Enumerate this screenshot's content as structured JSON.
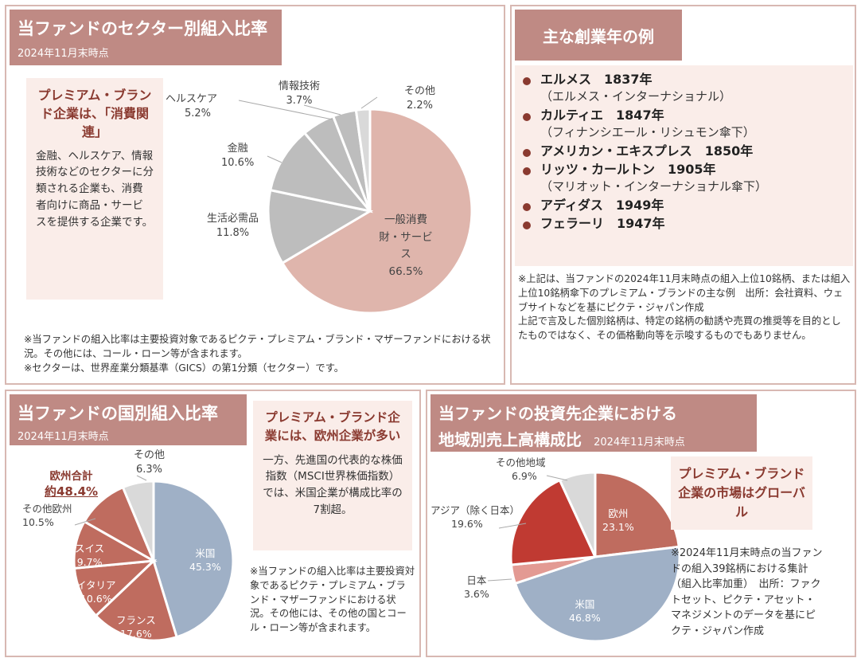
{
  "sector": {
    "title": "当ファンドのセクター別組入比率",
    "date": "2024年11月末時点",
    "callout_title": "プレミアム・ブランド企業は、「消費関連」",
    "callout_body": "金融、ヘルスケア、情報技術などのセクターに分類される企業も、消費者向けに商品・サービスを提供する企業です。",
    "notes": [
      "※当ファンドの組入比率は主要投資対象であるピクテ・プレミアム・ブランド・マザーファンドにおける状況。その他には、コール・ローン等が含まれます。",
      "※セクターは、世界産業分類基準（GICS）の第1分類（セクター）です。"
    ]
  },
  "founders": {
    "title": "主な創業年の例",
    "items": [
      {
        "main": "エルメス　1837年",
        "parent": "（エルメス・インターナショナル）"
      },
      {
        "main": "カルティエ　1847年",
        "parent": "（フィナンシエール・リシュモン傘下）"
      },
      {
        "main": "アメリカン・エキスプレス　1850年",
        "parent": ""
      },
      {
        "main": "リッツ・カールトン　1905年",
        "parent": "（マリオット・インターナショナル傘下）"
      },
      {
        "main": "アディダス　1949年",
        "parent": ""
      },
      {
        "main": "フェラーリ　1947年",
        "parent": ""
      }
    ],
    "notes": "※上記は、当ファンドの2024年11月末時点の組入上位10銘柄、または組入上位10銘柄傘下のプレミアム・ブランドの主な例　出所：会社資料、ウェブサイトなどを基にピクテ・ジャパン作成\n上記で言及した個別銘柄は、特定の銘柄の勧誘や売買の推奨等を目的としたものではなく、その価格動向等を示唆するものでもありません。"
  },
  "country": {
    "title": "当ファンドの国別組入比率",
    "date": "2024年11月末時点",
    "europe_total_label": "欧州合計",
    "europe_total_value": "約48.4%",
    "callout_title": "プレミアム・ブランド企業には、欧州企業が多い",
    "callout_body": "一方、先進国の代表的な株価指数（MSCI世界株価指数）では、米国企業が構成比率の7割超。",
    "note": "※当ファンドの組入比率は主要投資対象であるピクテ・プレミアム・ブランド・マザーファンドにおける状況。その他には、その他の国とコール・ローン等が含まれます。"
  },
  "region": {
    "title_line1": "当ファンドの投資先企業における",
    "title_line2": "地域別売上高構成比",
    "date": "2024年11月末時点",
    "callout_title": "プレミアム・ブランド企業の市場はグローバル",
    "note": "※2024年11月末時点の当ファンドの組入39銘柄における集計（組入比率加重）　出所：ファクトセット、ピクテ・アセット・マネジメントのデータを基にピクテ・ジャパン作成"
  },
  "colors": {
    "header_bg": "#bf8a84",
    "callout_bg": "#faede9",
    "accent_text": "#8a3a30",
    "pie_pink": "#dfb5ac",
    "pie_gray": "#bdbdbd",
    "pie_gray_light": "#d9d9d9",
    "pie_blue": "#9fb0c6",
    "pie_terracotta": "#bf6c5f",
    "pie_red": "#c03a32",
    "pie_rose": "#e39a93"
  },
  "chart_data": [
    {
      "type": "pie",
      "title": "当ファンドのセクター別組入比率",
      "categories": [
        "一般消費財・サービス",
        "生活必需品",
        "金融",
        "ヘルスケア",
        "情報技術",
        "その他"
      ],
      "values": [
        66.5,
        11.8,
        10.6,
        5.2,
        3.7,
        2.2
      ],
      "labels": [
        "66.5%",
        "11.8%",
        "10.6%",
        "5.2%",
        "3.7%",
        "2.2%"
      ]
    },
    {
      "type": "pie",
      "title": "当ファンドの国別組入比率",
      "categories": [
        "米国",
        "フランス",
        "イタリア",
        "スイス",
        "その他欧州",
        "その他"
      ],
      "values": [
        45.3,
        17.6,
        10.6,
        9.7,
        10.5,
        6.3
      ],
      "labels": [
        "45.3%",
        "17.6%",
        "10.6%",
        "9.7%",
        "10.5%",
        "6.3%"
      ]
    },
    {
      "type": "pie",
      "title": "地域別売上高構成比",
      "categories": [
        "欧州",
        "米国",
        "日本",
        "アジア（除く日本）",
        "その他地域"
      ],
      "values": [
        23.1,
        46.8,
        3.6,
        19.6,
        6.9
      ],
      "labels": [
        "23.1%",
        "46.8%",
        "3.6%",
        "19.6%",
        "6.9%"
      ]
    }
  ]
}
